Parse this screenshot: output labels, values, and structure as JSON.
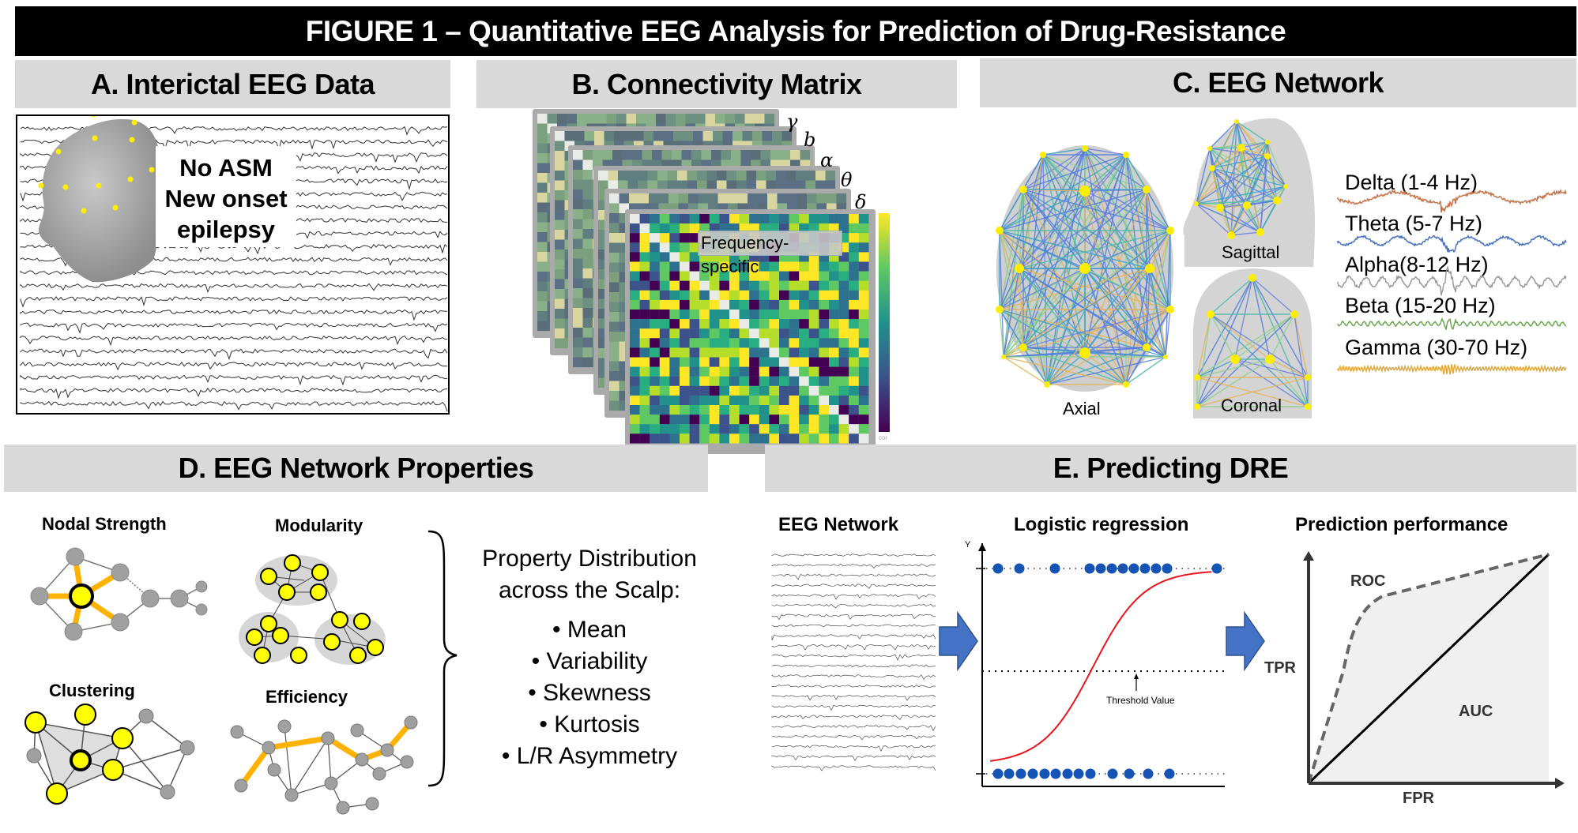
{
  "title": "FIGURE 1 – Quantitative EEG Analysis for Prediction of Drug-Resistance",
  "panels": {
    "a": {
      "header": "A. Interictal EEG Data",
      "overlay_lines": [
        "No ASM",
        "New onset",
        "epilepsy"
      ],
      "channel_count": 22
    },
    "b": {
      "header": "B. Connectivity Matrix",
      "band_symbols": [
        "γ",
        "b",
        "α",
        "θ",
        "δ"
      ],
      "front_label": "Frequency-specific",
      "colorbar_label": "cor"
    },
    "c": {
      "header": "C. EEG Network",
      "views": [
        "Axial",
        "Sagittal",
        "Coronal"
      ],
      "bands": [
        {
          "label": "Delta (1-4 Hz)",
          "color": "#c8744a"
        },
        {
          "label": "Theta (5-7 Hz)",
          "color": "#4a72c0"
        },
        {
          "label": "Alpha(8-12 Hz)",
          "color": "#9a9a9a"
        },
        {
          "label": "Beta (15-20 Hz)",
          "color": "#6aa84f"
        },
        {
          "label": "Gamma (30-70 Hz)",
          "color": "#e0a93a"
        }
      ]
    },
    "d": {
      "header": "D. EEG Network Properties",
      "measures": [
        "Nodal Strength",
        "Modularity",
        "Clustering",
        "Efficiency"
      ],
      "distribution_title_lines": [
        "Property Distribution",
        "across the Scalp:"
      ],
      "statistics": [
        "Mean",
        "Variability",
        "Skewness",
        "Kurtosis",
        "L/R Asymmetry"
      ]
    },
    "e": {
      "header": "E. Predicting DRE",
      "steps": [
        "EEG Network",
        "Logistic regression",
        "Prediction performance"
      ],
      "logistic": {
        "y_axis_label": "Y",
        "threshold_label": "Threshold Value",
        "curve_color": "#e8141c",
        "point_color": "#1553b4"
      },
      "roc": {
        "curve_label": "ROC",
        "area_label": "AUC",
        "x_axis_label": "FPR",
        "y_axis_label": "TPR"
      }
    }
  },
  "colors": {
    "header_bg": "#d9d9d9",
    "node_yellow": "#ffff00",
    "edge_orange": "#ffb300",
    "arrow_blue": "#4472c4"
  }
}
